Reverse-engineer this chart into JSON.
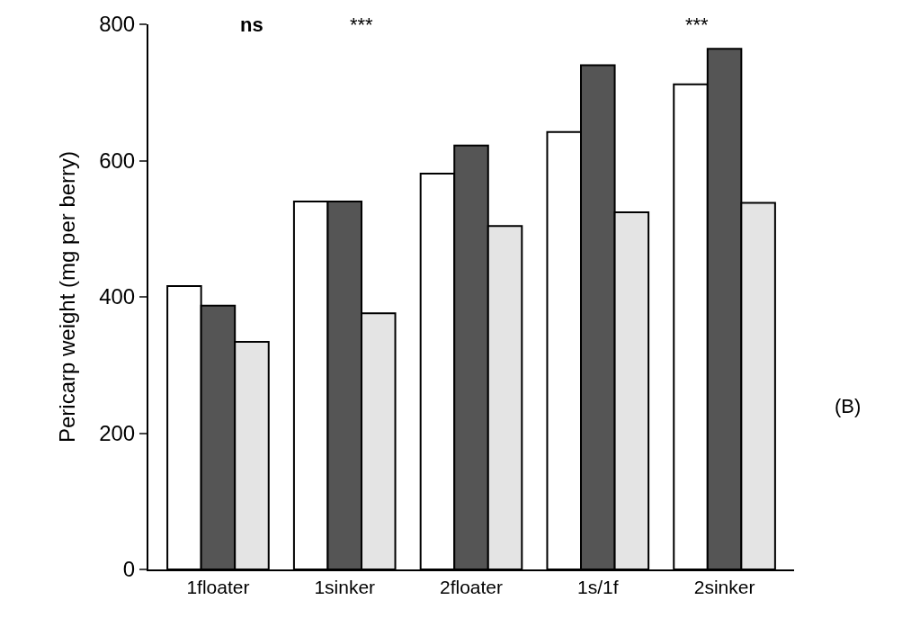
{
  "chart_data": {
    "type": "bar",
    "ylabel": "Pericarp weight (mg per berry)",
    "categories": [
      "1floater",
      "1sinker",
      "2floater",
      "1s/1f",
      "2sinker"
    ],
    "series": [
      {
        "color": "#ffffff",
        "values": [
          416,
          540,
          581,
          642,
          712
        ]
      },
      {
        "color": "#555555",
        "values": [
          387,
          540,
          622,
          740,
          764
        ]
      },
      {
        "color": "#e4e4e4",
        "values": [
          334,
          376,
          504,
          524,
          538
        ]
      }
    ],
    "ylim": [
      0,
      800
    ],
    "yticks": [
      0,
      200,
      400,
      600,
      800
    ],
    "grid": false,
    "annotations": [
      "ns",
      "***",
      "***",
      "(B)"
    ]
  }
}
